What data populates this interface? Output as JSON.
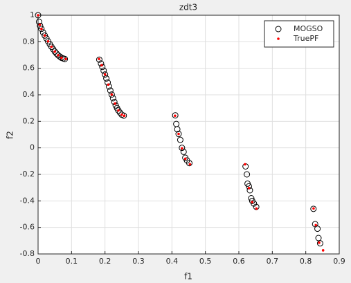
{
  "chart_data": {
    "type": "scatter",
    "title": "zdt3",
    "x_label": "f1",
    "y_label": "f2",
    "xlim": [
      0,
      0.9
    ],
    "ylim": [
      -0.8,
      1
    ],
    "xticks": [
      0,
      0.1,
      0.2,
      0.3,
      0.4,
      0.5,
      0.6,
      0.7,
      0.8,
      0.9
    ],
    "yticks": [
      -0.8,
      -0.6,
      -0.4,
      -0.2,
      0,
      0.2,
      0.4,
      0.6,
      0.8,
      1
    ],
    "grid": true,
    "legend": "northeast",
    "series": [
      {
        "name": "MOGSO",
        "color": "#000000",
        "marker": "o",
        "x": [
          0,
          0.003,
          0.006,
          0.01,
          0.015,
          0.02,
          0.025,
          0.03,
          0.035,
          0.04,
          0.045,
          0.05,
          0.055,
          0.06,
          0.065,
          0.07,
          0.075,
          0.08,
          0.183,
          0.188,
          0.192,
          0.196,
          0.2,
          0.204,
          0.208,
          0.212,
          0.216,
          0.22,
          0.224,
          0.228,
          0.232,
          0.236,
          0.24,
          0.245,
          0.25,
          0.256,
          0.41,
          0.413,
          0.416,
          0.42,
          0.425,
          0.43,
          0.435,
          0.44,
          0.445,
          0.452,
          0.62,
          0.624,
          0.626,
          0.63,
          0.633,
          0.637,
          0.64,
          0.645,
          0.652,
          0.823,
          0.828,
          0.835,
          0.838,
          0.843
        ],
        "y": [
          1,
          0.95,
          0.92,
          0.897,
          0.87,
          0.847,
          0.825,
          0.803,
          0.782,
          0.762,
          0.744,
          0.726,
          0.711,
          0.698,
          0.688,
          0.679,
          0.674,
          0.67,
          0.665,
          0.636,
          0.61,
          0.582,
          0.553,
          0.523,
          0.493,
          0.462,
          0.432,
          0.402,
          0.374,
          0.346,
          0.32,
          0.3,
          0.282,
          0.265,
          0.25,
          0.243,
          0.245,
          0.18,
          0.14,
          0.105,
          0.06,
          0.0,
          -0.03,
          -0.075,
          -0.095,
          -0.115,
          -0.14,
          -0.2,
          -0.27,
          -0.29,
          -0.32,
          -0.38,
          -0.4,
          -0.42,
          -0.445,
          -0.46,
          -0.575,
          -0.61,
          -0.68,
          -0.72
        ]
      },
      {
        "name": "TruePF",
        "color": "#ff0000",
        "marker": ".",
        "x": [
          0,
          0.005,
          0.01,
          0.02,
          0.03,
          0.04,
          0.05,
          0.06,
          0.07,
          0.083,
          0.1822,
          0.19,
          0.2,
          0.21,
          0.22,
          0.23,
          0.24,
          0.25,
          0.2578,
          0.4093,
          0.42,
          0.43,
          0.44,
          0.4539,
          0.6184,
          0.63,
          0.64,
          0.6525,
          0.8233,
          0.83,
          0.84,
          0.8518
        ],
        "y": [
          1,
          0.928,
          0.897,
          0.847,
          0.803,
          0.762,
          0.726,
          0.698,
          0.679,
          0.67,
          0.67,
          0.623,
          0.553,
          0.477,
          0.402,
          0.334,
          0.282,
          0.25,
          0.242,
          0.242,
          0.105,
          -0.004,
          -0.082,
          -0.124,
          -0.124,
          -0.303,
          -0.409,
          -0.458,
          -0.457,
          -0.583,
          -0.715,
          -0.773
        ]
      }
    ]
  }
}
